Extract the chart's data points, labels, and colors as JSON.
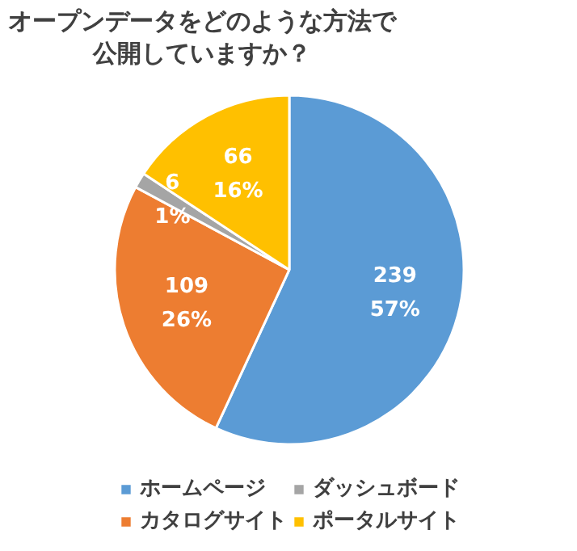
{
  "chart_data": {
    "type": "pie",
    "title": "オープンデータをどのような方法で公開していますか？",
    "categories": [
      "ホームページ",
      "カタログサイト",
      "ダッシュボード",
      "ポータルサイト"
    ],
    "values": [
      239,
      109,
      6,
      66
    ],
    "colors": [
      "#5b9bd5",
      "#ed7d31",
      "#a5a5a5",
      "#ffc000"
    ],
    "value_labels": [
      "239\n57%",
      "109\n26%",
      "6\n1%",
      "66\n16%"
    ],
    "legend": "bottom"
  }
}
